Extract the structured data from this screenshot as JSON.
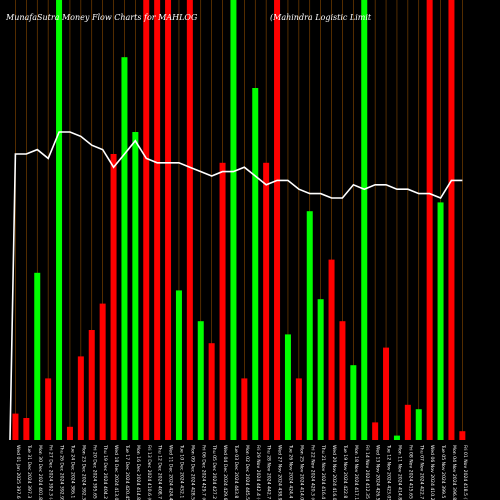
{
  "chart_data": {
    "type": "bar",
    "title_left": "MunafaSutra  Money Flow  Charts for MAHLOG",
    "title_right": "(Mahindra  Logistic Limit",
    "colors": {
      "background": "#000000",
      "up": "#00ff00",
      "down": "#ff0000",
      "grid": "#8a4a00",
      "line": "#ffffff"
    },
    "ylim": [
      0,
      100
    ],
    "categories": [
      "Wed 01 Jan 2025 397.6 (0.08%)",
      "Tue 31 Dec 2024 397.3 (-1.13%)",
      "Mon 30 Dec 2024 401.85 (2.43%)",
      "Fri 27 Dec 2024 392.3 (-0.16%)",
      "Thu 26 Dec 2024 392.95 (1.77%)",
      "Tue 24 Dec 2024 386.1 (-1.58%)",
      "Mon 23 Dec 2024 392.3 (-0.84%)",
      "Fri 20 Dec 2024 395.65 (-2.12%)",
      "Thu 19 Dec 2024 404.2 (-2.12%)",
      "Wed 18 Dec 2024 413.0 (-1.77%)",
      "Tue 17 Dec 2024 420.45 (1.36%)",
      "Mon 16 Dec 2024 414.8 (1.02%)",
      "Fri 13 Dec 2024 410.6 (0.46%)",
      "Thu 12 Dec 2024 408.7 (-3.71%)",
      "Wed 11 Dec 2024 424.45 (-1.77%)",
      "Tue 10 Dec 2024 432.1 (0.84%)",
      "Mon 09 Dec 2024 428.5 (-0.28%)",
      "Fri 06 Dec 2024 429.7 (0.59%)",
      "Thu 05 Dec 2024 427.2 (-0.55%)",
      "Wed 04 Dec 2024 429.6 (-3.2%)",
      "Tue 03 Dec 2024 443.8 (-0.39%)",
      "Mon 02 Dec 2024 445.55 (0.71%)",
      "Fri 29 Nov 2024 442.4 (-0.07%)",
      "Thu 28 Nov 2024 442.7 (0.86%)",
      "Wed 27 Nov 2024 438.9 (3.41%)",
      "Tue 26 Nov 2024 424.4 (2.5%)",
      "Mon 25 Nov 2024 414.05 (-1.48%)",
      "Fri 22 Nov 2024 420.3 (0.94%)",
      "Thu 21 Nov 2024 416.4 (0.1%)",
      "Wed 20 Nov 2024 416.0 (-1.61%)",
      "Tue 19 Nov 2024 422.8 (1.36%)",
      "Mon 18 Nov 2024 417.15 (1.16%)",
      "Fri 14 Nov 2024 412.35 (-3.32%)",
      "Wed 13 Nov 2024 426.5 (0.82%)",
      "Tue 12 Nov 2024 423.05 (2.0%)",
      "Mon 11 Nov 2024 414.8 (-0.2%)",
      "Fri 08 Nov 2024 415.65 (-1.67%)",
      "Thu 07 Nov 2024 422.7 (3.05%)",
      "Wed 06 Nov 2024 410.2 (2.68%)",
      "Tue 05 Nov 2024 399.5 (0.68%)",
      "Mon 04 Nov 2024 396.8 (-5.18%)",
      "Fri 01 Nov 2024 418.5 (1.59%)"
    ],
    "series": [
      {
        "dir": [
          "down",
          "down",
          "up",
          "down",
          "up",
          "down",
          "down",
          "down",
          "down",
          "down",
          "up",
          "up",
          "down",
          "down",
          "down",
          "up",
          "down",
          "up",
          "down",
          "down",
          "up",
          "down",
          "up",
          "down",
          "down",
          "up",
          "down",
          "up",
          "up",
          "down",
          "down",
          "up",
          "up",
          "down",
          "down",
          "up",
          "down",
          "up",
          "down",
          "up",
          "down",
          "down"
        ],
        "values": [
          6,
          5,
          38,
          14,
          100,
          3,
          19,
          25,
          31,
          65,
          87,
          70,
          100,
          100,
          100,
          34,
          100,
          27,
          22,
          63,
          100,
          14,
          80,
          63,
          100,
          24,
          14,
          52,
          32,
          41,
          27,
          17,
          100,
          4,
          21,
          1,
          8,
          7,
          100,
          54,
          100,
          2
        ]
      },
      {
        "values": [
          65,
          65,
          66,
          64,
          70,
          70,
          69,
          67,
          66,
          62,
          65,
          68,
          64,
          63,
          63,
          63,
          62,
          61,
          60,
          61,
          61,
          62,
          60,
          58,
          59,
          59,
          57,
          56,
          56,
          55,
          55,
          58,
          57,
          58,
          58,
          57,
          57,
          56,
          56,
          55,
          59,
          59
        ]
      }
    ]
  }
}
